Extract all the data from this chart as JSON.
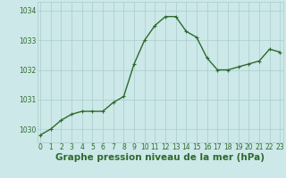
{
  "x": [
    0,
    1,
    2,
    3,
    4,
    5,
    6,
    7,
    8,
    9,
    10,
    11,
    12,
    13,
    14,
    15,
    16,
    17,
    18,
    19,
    20,
    21,
    22,
    23
  ],
  "y": [
    1029.8,
    1030.0,
    1030.3,
    1030.5,
    1030.6,
    1030.6,
    1030.6,
    1030.9,
    1031.1,
    1032.2,
    1033.0,
    1033.5,
    1033.8,
    1033.8,
    1033.3,
    1033.1,
    1032.4,
    1032.0,
    1032.0,
    1032.1,
    1032.2,
    1032.3,
    1032.7,
    1032.6
  ],
  "line_color": "#2d6a2d",
  "marker_color": "#2d6a2d",
  "bg_color": "#cce8e8",
  "grid_color": "#aacccc",
  "xlabel": "Graphe pression niveau de la mer (hPa)",
  "xlabel_color": "#2d6a2d",
  "ylabel_ticks": [
    1030,
    1031,
    1032,
    1033,
    1034
  ],
  "xlim": [
    -0.3,
    23.3
  ],
  "ylim": [
    1029.55,
    1034.3
  ],
  "xtick_labels": [
    "0",
    "1",
    "2",
    "3",
    "4",
    "5",
    "6",
    "7",
    "8",
    "9",
    "10",
    "11",
    "12",
    "13",
    "14",
    "15",
    "16",
    "17",
    "18",
    "19",
    "20",
    "21",
    "22",
    "23"
  ],
  "tick_fontsize": 5.5,
  "xlabel_fontsize": 7.5,
  "line_width": 1.0,
  "marker_size": 2.5
}
